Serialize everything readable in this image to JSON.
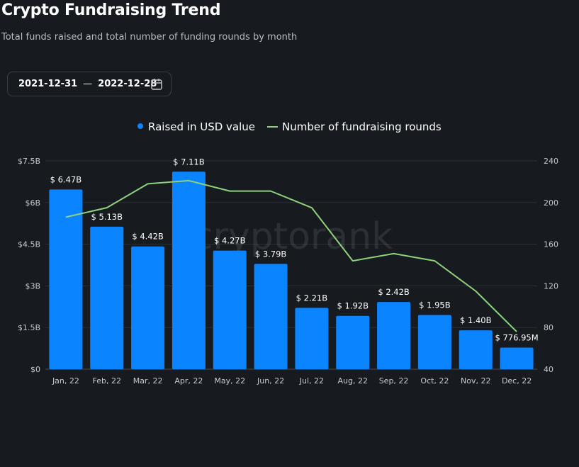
{
  "header": {
    "title": "Crypto Fundraising Trend",
    "subtitle": "Total funds raised and total number of funding rounds by month"
  },
  "date_range": {
    "start": "2021-12-31",
    "separator": "—",
    "end": "2022-12-28",
    "icon": "calendar-icon"
  },
  "watermark": "cryptorank",
  "colors": {
    "bar": "#0a84ff",
    "line": "#8fd17d",
    "background": "#171b1f"
  },
  "chart_data": {
    "type": "bar",
    "categories": [
      "Jan, 22",
      "Feb, 22",
      "Mar, 22",
      "Apr, 22",
      "May, 22",
      "Jun, 22",
      "Jul, 22",
      "Aug, 22",
      "Sep, 22",
      "Oct, 22",
      "Nov, 22",
      "Dec, 22"
    ],
    "series": [
      {
        "name": "Raised in USD value",
        "type": "bar",
        "axis": "left",
        "values": [
          6.47,
          5.13,
          4.42,
          7.11,
          4.27,
          3.79,
          2.21,
          1.92,
          2.42,
          1.95,
          1.4,
          0.77695
        ],
        "labels": [
          "$ 6.47B",
          "$ 5.13B",
          "$ 4.42B",
          "$ 7.11B",
          "$ 4.27B",
          "$ 3.79B",
          "$ 2.21B",
          "$ 1.92B",
          "$ 2.42B",
          "$ 1.95B",
          "$ 1.40B",
          "$ 776.95M"
        ]
      },
      {
        "name": "Number of fundraising rounds",
        "type": "line",
        "axis": "right",
        "values": [
          186,
          195,
          218,
          221,
          211,
          211,
          195,
          144,
          151,
          144,
          115,
          76
        ]
      }
    ],
    "y_left": {
      "ticks": [
        0,
        1.5,
        3,
        4.5,
        6,
        7.5
      ],
      "tick_labels": [
        "$0",
        "$1.5B",
        "$3B",
        "$4.5B",
        "$6B",
        "$7.5B"
      ],
      "ylim": [
        0,
        7.5
      ]
    },
    "y_right": {
      "ticks": [
        40,
        80,
        120,
        160,
        200,
        240
      ],
      "tick_labels": [
        "40",
        "80",
        "120",
        "160",
        "200",
        "240"
      ],
      "ylim": [
        40,
        240
      ]
    },
    "grid": true,
    "legend_position": "top-center"
  }
}
